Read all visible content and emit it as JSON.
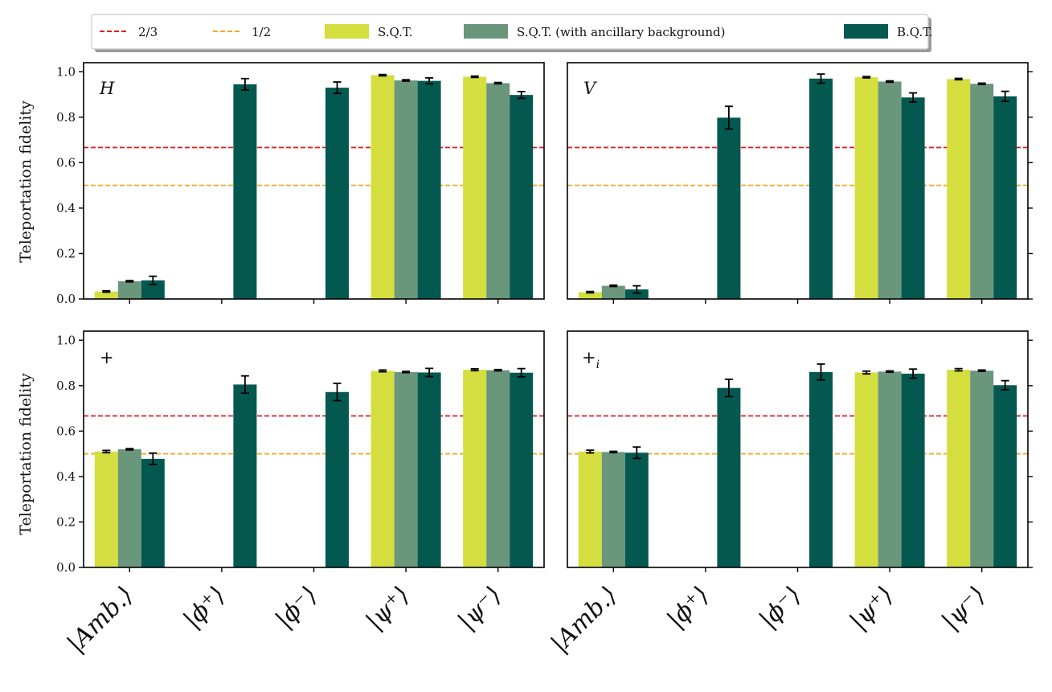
{
  "chart_data": {
    "type": "bar",
    "categories": [
      "|Amb.⟩",
      "|ϕ⁺⟩",
      "|ϕ⁻⟩",
      "|ψ⁺⟩",
      "|ψ⁻⟩"
    ],
    "ylabel": "Teleportation fidelity",
    "ylim": [
      0,
      1.04
    ],
    "yticks": [
      "0.0",
      "0.2",
      "0.4",
      "0.6",
      "0.8",
      "1.0"
    ],
    "legend": {
      "placement": "top",
      "entries": [
        {
          "label": "2/3",
          "kind": "line",
          "color": "#e31a1c"
        },
        {
          "label": "1/2",
          "kind": "line",
          "color": "#f5a623"
        },
        {
          "label": "S.Q.T.",
          "kind": "bar",
          "color": "#d4de3f"
        },
        {
          "label": "S.Q.T. (with ancillary background)",
          "kind": "bar",
          "color": "#6a977b"
        },
        {
          "label": "B.Q.T.",
          "kind": "bar",
          "color": "#035850"
        }
      ]
    },
    "reference_lines": [
      {
        "name": "2/3",
        "value": 0.6667,
        "color": "#e31a1c"
      },
      {
        "name": "1/2",
        "value": 0.5,
        "color": "#f5a623"
      }
    ],
    "series_colors": {
      "sqt": "#d4de3f",
      "sqt_anc": "#6a977b",
      "bqt": "#035850"
    },
    "panels": [
      {
        "label": "H",
        "series": [
          {
            "name": "S.Q.T.",
            "values": [
              0.033,
              null,
              null,
              0.985,
              0.978
            ],
            "errors": [
              0.003,
              0,
              0,
              0.003,
              0.003
            ]
          },
          {
            "name": "S.Q.T. (with ancillary background)",
            "values": [
              0.078,
              null,
              null,
              0.962,
              0.95
            ],
            "errors": [
              0.003,
              0,
              0,
              0.003,
              0.003
            ]
          },
          {
            "name": "B.Q.T.",
            "values": [
              0.082,
              0.945,
              0.93,
              0.96,
              0.898
            ],
            "errors": [
              0.018,
              0.025,
              0.025,
              0.013,
              0.015
            ]
          }
        ]
      },
      {
        "label": "V",
        "series": [
          {
            "name": "S.Q.T.",
            "values": [
              0.03,
              null,
              null,
              0.976,
              0.968
            ],
            "errors": [
              0.003,
              0,
              0,
              0.003,
              0.003
            ]
          },
          {
            "name": "S.Q.T. (with ancillary background)",
            "values": [
              0.058,
              null,
              null,
              0.957,
              0.947
            ],
            "errors": [
              0.003,
              0,
              0,
              0.003,
              0.003
            ]
          },
          {
            "name": "B.Q.T.",
            "values": [
              0.042,
              0.798,
              0.97,
              0.887,
              0.892
            ],
            "errors": [
              0.016,
              0.05,
              0.02,
              0.02,
              0.022
            ]
          }
        ]
      },
      {
        "label": "+",
        "series": [
          {
            "name": "S.Q.T.",
            "values": [
              0.51,
              null,
              null,
              0.865,
              0.87
            ],
            "errors": [
              0.005,
              0,
              0,
              0.004,
              0.004
            ]
          },
          {
            "name": "S.Q.T. (with ancillary background)",
            "values": [
              0.52,
              null,
              null,
              0.86,
              0.868
            ],
            "errors": [
              0.003,
              0,
              0,
              0.003,
              0.003
            ]
          },
          {
            "name": "B.Q.T.",
            "values": [
              0.478,
              0.805,
              0.772,
              0.858,
              0.857
            ],
            "errors": [
              0.025,
              0.038,
              0.038,
              0.018,
              0.018
            ]
          }
        ]
      },
      {
        "label": "+",
        "label_sub": "i",
        "series": [
          {
            "name": "S.Q.T.",
            "values": [
              0.51,
              null,
              null,
              0.858,
              0.87
            ],
            "errors": [
              0.006,
              0,
              0,
              0.006,
              0.005
            ]
          },
          {
            "name": "S.Q.T. (with ancillary background)",
            "values": [
              0.508,
              null,
              null,
              0.862,
              0.866
            ],
            "errors": [
              0.003,
              0,
              0,
              0.003,
              0.003
            ]
          },
          {
            "name": "B.Q.T.",
            "values": [
              0.505,
              0.79,
              0.86,
              0.853,
              0.802
            ],
            "errors": [
              0.025,
              0.038,
              0.035,
              0.02,
              0.02
            ]
          }
        ]
      }
    ]
  }
}
